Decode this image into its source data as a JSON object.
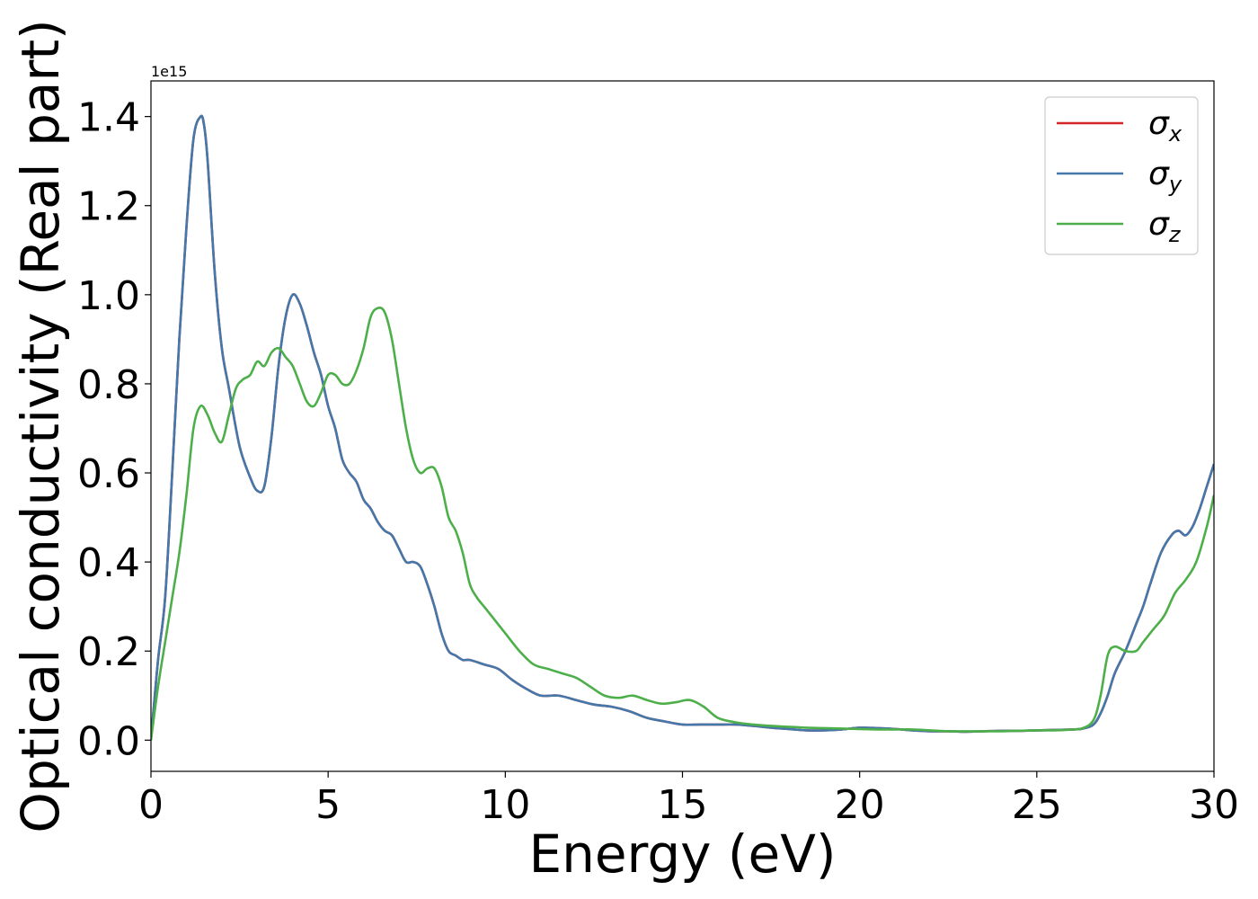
{
  "chart_data": {
    "type": "line",
    "title": "",
    "xlabel": "Energy (eV)",
    "ylabel": "Optical conductivity (Real part)",
    "y_offset_label": "1e15",
    "xlim": [
      0,
      30
    ],
    "ylim": [
      -0.07,
      1.48
    ],
    "y_scale_multiplier": 1000000000000000.0,
    "grid": false,
    "legend_position": "upper right",
    "xticks": [
      0,
      5,
      10,
      15,
      20,
      25,
      30
    ],
    "xtick_labels": [
      "0",
      "5",
      "10",
      "15",
      "20",
      "25",
      "30"
    ],
    "yticks": [
      0.0,
      0.2,
      0.4,
      0.6,
      0.8,
      1.0,
      1.2,
      1.4
    ],
    "ytick_labels": [
      "0.0",
      "0.2",
      "0.4",
      "0.6",
      "0.8",
      "1.0",
      "1.2",
      "1.4"
    ],
    "series": [
      {
        "name": "σx",
        "legend_symbol": "σ",
        "legend_sub": "x",
        "color": "#d62728",
        "x": [
          0,
          0.2,
          0.4,
          0.6,
          0.8,
          1.0,
          1.2,
          1.4,
          1.5,
          1.6,
          1.8,
          2.0,
          2.2,
          2.5,
          2.8,
          3.0,
          3.2,
          3.4,
          3.6,
          3.8,
          4.0,
          4.2,
          4.4,
          4.6,
          4.8,
          5.0,
          5.2,
          5.4,
          5.6,
          5.8,
          6.0,
          6.2,
          6.4,
          6.6,
          6.8,
          7.0,
          7.2,
          7.4,
          7.6,
          7.8,
          8.0,
          8.2,
          8.4,
          8.6,
          8.8,
          9.0,
          9.4,
          9.8,
          10.2,
          10.6,
          11.0,
          11.5,
          12.0,
          12.5,
          13.0,
          13.5,
          14.0,
          14.5,
          15.0,
          15.5,
          16.0,
          16.5,
          17.0,
          17.5,
          18.0,
          18.5,
          19.0,
          19.5,
          20.0,
          20.5,
          21.0,
          21.5,
          22.0,
          22.5,
          23.0,
          23.5,
          24.0,
          24.5,
          25.0,
          25.5,
          26.0,
          26.3,
          26.6,
          26.8,
          27.0,
          27.2,
          27.5,
          27.8,
          28.0,
          28.2,
          28.5,
          28.8,
          29.0,
          29.2,
          29.4,
          29.6,
          29.8,
          30.0
        ],
        "y": [
          0.0,
          0.18,
          0.32,
          0.6,
          0.9,
          1.15,
          1.35,
          1.4,
          1.38,
          1.3,
          1.05,
          0.88,
          0.79,
          0.66,
          0.59,
          0.56,
          0.57,
          0.68,
          0.84,
          0.95,
          1.0,
          0.98,
          0.93,
          0.87,
          0.82,
          0.75,
          0.7,
          0.63,
          0.6,
          0.58,
          0.54,
          0.52,
          0.49,
          0.47,
          0.46,
          0.43,
          0.4,
          0.4,
          0.39,
          0.35,
          0.3,
          0.24,
          0.2,
          0.19,
          0.18,
          0.18,
          0.17,
          0.16,
          0.135,
          0.115,
          0.1,
          0.1,
          0.09,
          0.08,
          0.075,
          0.065,
          0.05,
          0.042,
          0.035,
          0.035,
          0.035,
          0.035,
          0.032,
          0.028,
          0.025,
          0.022,
          0.022,
          0.024,
          0.028,
          0.027,
          0.025,
          0.022,
          0.02,
          0.02,
          0.019,
          0.02,
          0.021,
          0.021,
          0.022,
          0.023,
          0.024,
          0.026,
          0.035,
          0.06,
          0.1,
          0.15,
          0.2,
          0.26,
          0.3,
          0.35,
          0.42,
          0.46,
          0.47,
          0.46,
          0.48,
          0.52,
          0.57,
          0.62
        ]
      },
      {
        "name": "σy",
        "legend_symbol": "σ",
        "legend_sub": "y",
        "color": "#4477aa",
        "x": [
          0,
          0.2,
          0.4,
          0.6,
          0.8,
          1.0,
          1.2,
          1.4,
          1.5,
          1.6,
          1.8,
          2.0,
          2.2,
          2.5,
          2.8,
          3.0,
          3.2,
          3.4,
          3.6,
          3.8,
          4.0,
          4.2,
          4.4,
          4.6,
          4.8,
          5.0,
          5.2,
          5.4,
          5.6,
          5.8,
          6.0,
          6.2,
          6.4,
          6.6,
          6.8,
          7.0,
          7.2,
          7.4,
          7.6,
          7.8,
          8.0,
          8.2,
          8.4,
          8.6,
          8.8,
          9.0,
          9.4,
          9.8,
          10.2,
          10.6,
          11.0,
          11.5,
          12.0,
          12.5,
          13.0,
          13.5,
          14.0,
          14.5,
          15.0,
          15.5,
          16.0,
          16.5,
          17.0,
          17.5,
          18.0,
          18.5,
          19.0,
          19.5,
          20.0,
          20.5,
          21.0,
          21.5,
          22.0,
          22.5,
          23.0,
          23.5,
          24.0,
          24.5,
          25.0,
          25.5,
          26.0,
          26.3,
          26.6,
          26.8,
          27.0,
          27.2,
          27.5,
          27.8,
          28.0,
          28.2,
          28.5,
          28.8,
          29.0,
          29.2,
          29.4,
          29.6,
          29.8,
          30.0
        ],
        "y": [
          0.0,
          0.18,
          0.32,
          0.6,
          0.9,
          1.15,
          1.35,
          1.4,
          1.38,
          1.3,
          1.05,
          0.88,
          0.79,
          0.66,
          0.59,
          0.56,
          0.57,
          0.68,
          0.84,
          0.95,
          1.0,
          0.98,
          0.93,
          0.87,
          0.82,
          0.75,
          0.7,
          0.63,
          0.6,
          0.58,
          0.54,
          0.52,
          0.49,
          0.47,
          0.46,
          0.43,
          0.4,
          0.4,
          0.39,
          0.35,
          0.3,
          0.24,
          0.2,
          0.19,
          0.18,
          0.18,
          0.17,
          0.16,
          0.135,
          0.115,
          0.1,
          0.1,
          0.09,
          0.08,
          0.075,
          0.065,
          0.05,
          0.042,
          0.035,
          0.035,
          0.035,
          0.035,
          0.032,
          0.028,
          0.025,
          0.022,
          0.022,
          0.024,
          0.028,
          0.027,
          0.025,
          0.022,
          0.02,
          0.02,
          0.019,
          0.02,
          0.021,
          0.021,
          0.022,
          0.023,
          0.024,
          0.026,
          0.035,
          0.06,
          0.1,
          0.15,
          0.2,
          0.26,
          0.3,
          0.35,
          0.42,
          0.46,
          0.47,
          0.46,
          0.48,
          0.52,
          0.57,
          0.62
        ]
      },
      {
        "name": "σz",
        "legend_symbol": "σ",
        "legend_sub": "z",
        "color": "#4daf4a",
        "x": [
          0,
          0.2,
          0.4,
          0.6,
          0.8,
          1.0,
          1.2,
          1.4,
          1.6,
          1.8,
          2.0,
          2.2,
          2.4,
          2.6,
          2.8,
          3.0,
          3.2,
          3.4,
          3.6,
          3.8,
          4.0,
          4.2,
          4.4,
          4.6,
          4.8,
          5.0,
          5.2,
          5.4,
          5.6,
          5.8,
          6.0,
          6.2,
          6.4,
          6.6,
          6.8,
          7.0,
          7.2,
          7.4,
          7.6,
          7.8,
          8.0,
          8.2,
          8.4,
          8.6,
          8.8,
          9.0,
          9.2,
          9.4,
          9.6,
          10.0,
          10.4,
          10.8,
          11.2,
          11.6,
          12.0,
          12.4,
          12.8,
          13.2,
          13.6,
          14.0,
          14.4,
          14.8,
          15.2,
          15.6,
          16.0,
          16.5,
          17.0,
          17.5,
          18.0,
          18.5,
          19.0,
          19.5,
          20.0,
          20.5,
          21.0,
          21.5,
          22.0,
          22.5,
          23.0,
          23.5,
          24.0,
          24.5,
          25.0,
          25.5,
          26.0,
          26.3,
          26.6,
          26.8,
          27.0,
          27.2,
          27.5,
          27.8,
          28.0,
          28.3,
          28.6,
          28.9,
          29.2,
          29.5,
          29.8,
          30.0
        ],
        "y": [
          0.0,
          0.12,
          0.22,
          0.32,
          0.42,
          0.55,
          0.7,
          0.75,
          0.73,
          0.69,
          0.67,
          0.73,
          0.79,
          0.81,
          0.82,
          0.85,
          0.84,
          0.87,
          0.88,
          0.86,
          0.84,
          0.8,
          0.76,
          0.75,
          0.78,
          0.82,
          0.82,
          0.8,
          0.8,
          0.83,
          0.88,
          0.95,
          0.97,
          0.96,
          0.9,
          0.8,
          0.7,
          0.63,
          0.6,
          0.61,
          0.61,
          0.57,
          0.5,
          0.47,
          0.42,
          0.35,
          0.32,
          0.3,
          0.28,
          0.24,
          0.2,
          0.17,
          0.16,
          0.15,
          0.14,
          0.12,
          0.1,
          0.095,
          0.1,
          0.09,
          0.082,
          0.085,
          0.09,
          0.075,
          0.05,
          0.04,
          0.035,
          0.032,
          0.03,
          0.028,
          0.027,
          0.026,
          0.025,
          0.024,
          0.024,
          0.024,
          0.022,
          0.02,
          0.02,
          0.02,
          0.02,
          0.021,
          0.022,
          0.022,
          0.024,
          0.027,
          0.045,
          0.1,
          0.19,
          0.21,
          0.2,
          0.2,
          0.22,
          0.25,
          0.28,
          0.33,
          0.36,
          0.4,
          0.48,
          0.55
        ]
      }
    ]
  }
}
